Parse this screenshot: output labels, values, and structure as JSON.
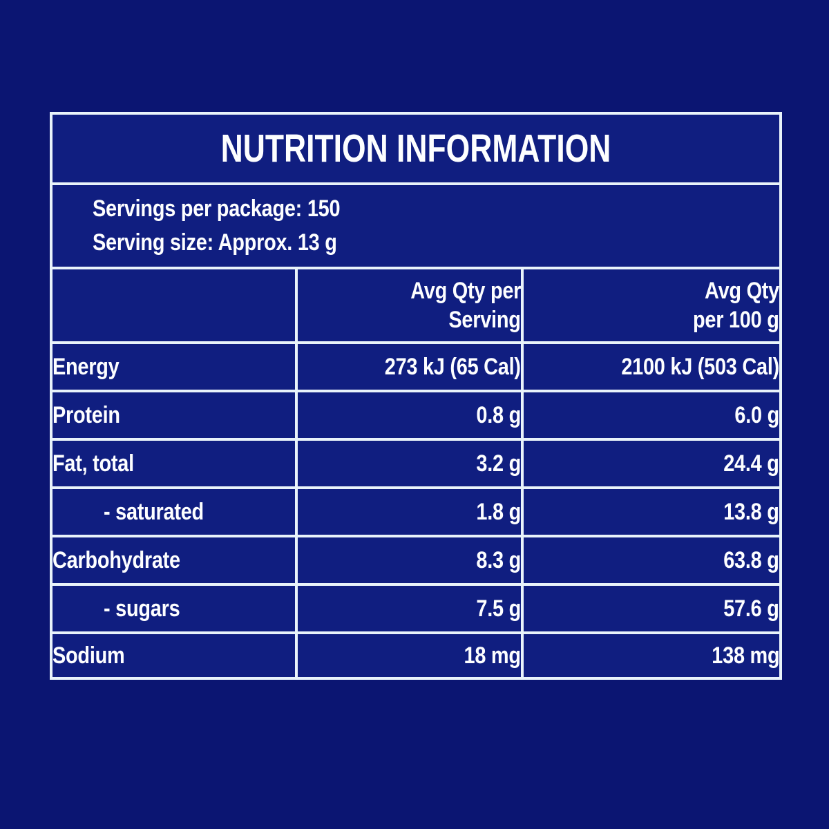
{
  "label": {
    "title": "NUTRITION INFORMATION",
    "serving_info": {
      "servings_per_package": "Servings per package: 150",
      "serving_size": "Serving size: Approx. 13 g"
    },
    "columns": {
      "per_serving": {
        "line1": "Avg Qty per",
        "line2": "Serving"
      },
      "per_100g": {
        "line1": "Avg Qty",
        "line2": "per 100 g"
      }
    },
    "rows": [
      {
        "label": "Energy",
        "per_serving": "273 kJ (65 Cal)",
        "per_100g": "2100 kJ (503 Cal)",
        "indent": false
      },
      {
        "label": "Protein",
        "per_serving": "0.8 g",
        "per_100g": "6.0 g",
        "indent": false
      },
      {
        "label": "Fat, total",
        "per_serving": "3.2 g",
        "per_100g": "24.4 g",
        "indent": false
      },
      {
        "label": "- saturated",
        "per_serving": "1.8 g",
        "per_100g": "13.8 g",
        "indent": true
      },
      {
        "label": "Carbohydrate",
        "per_serving": "8.3 g",
        "per_100g": "63.8 g",
        "indent": false
      },
      {
        "label": "- sugars",
        "per_serving": "7.5 g",
        "per_100g": "57.6 g",
        "indent": true
      },
      {
        "label": "Sodium",
        "per_serving": "18 mg",
        "per_100g": "138 mg",
        "indent": false
      }
    ],
    "colors": {
      "page_background": "#0b1572",
      "cell_background": "#101e80",
      "border": "#e9f3fa",
      "text": "#fdfeff"
    }
  }
}
